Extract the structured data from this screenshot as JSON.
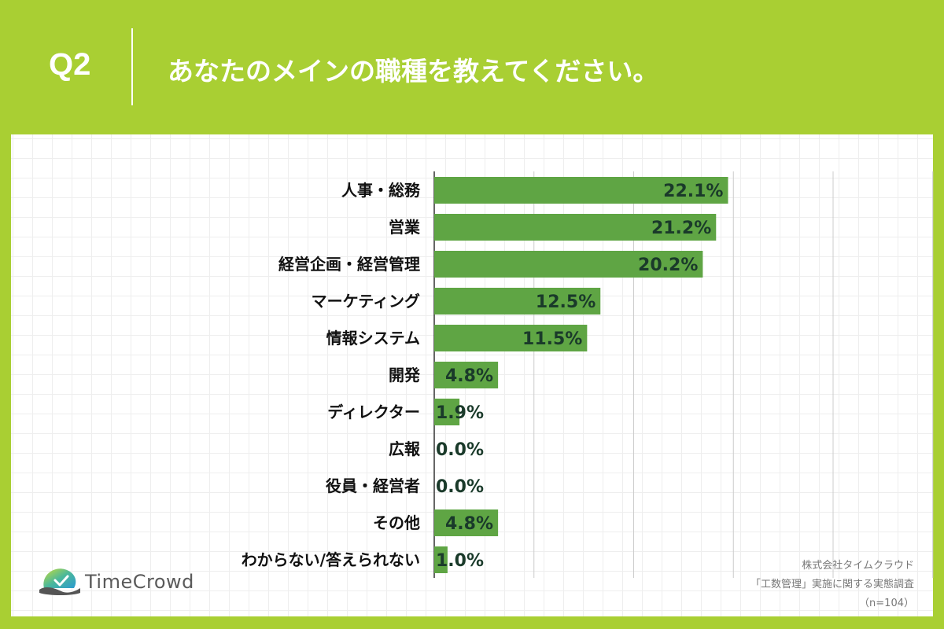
{
  "header": {
    "q_label": "Q2",
    "question": "あなたのメインの職種を教えてください。"
  },
  "chart_data": {
    "type": "bar",
    "orientation": "horizontal",
    "categories": [
      "人事・総務",
      "営業",
      "経営企画・経営管理",
      "マーケティング",
      "情報システム",
      "開発",
      "ディレクター",
      "広報",
      "役員・経営者",
      "その他",
      "わからない/答えられない"
    ],
    "values": [
      22.1,
      21.2,
      20.2,
      12.5,
      11.5,
      4.8,
      1.9,
      0.0,
      0.0,
      4.8,
      1.0
    ],
    "value_labels": [
      "22.1%",
      "21.2%",
      "20.2%",
      "12.5%",
      "11.5%",
      "4.8%",
      "1.9%",
      "0.0%",
      "0.0%",
      "4.8%",
      "1.0%"
    ],
    "xlim": [
      0,
      30
    ],
    "grid": true,
    "bar_color": "#5fa544"
  },
  "logo": {
    "name": "TimeCrowd",
    "icon": "timecrowd-logo-icon"
  },
  "source": {
    "company": "株式会社タイムクラウド",
    "survey": "「工数管理」実施に関する実態調査",
    "sample": "（n=104）"
  },
  "colors": {
    "background": "#a9cf33",
    "panel": "#ffffff",
    "bar": "#5fa544"
  }
}
